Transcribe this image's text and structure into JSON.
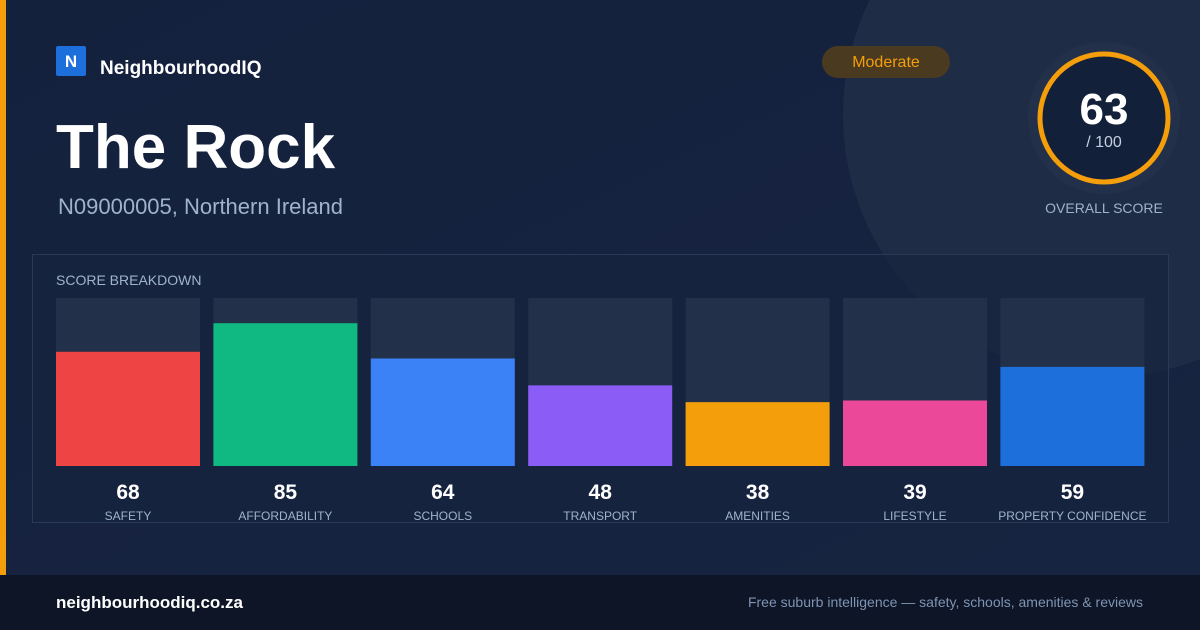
{
  "brand": {
    "logo": "N",
    "name": "NeighbourhoodIQ"
  },
  "header": {
    "title": "The Rock",
    "subtitle": "N09000005, Northern Ireland"
  },
  "badge": "Moderate",
  "score": {
    "value": 63,
    "out_of": {
      "value": 100,
      "label": "/ 100"
    },
    "caption": "OVERALL SCORE"
  },
  "breakdown": {
    "type": "bar",
    "title": "SCORE BREAKDOWN",
    "categories": [
      "SAFETY",
      "AFFORDABILITY",
      "SCHOOLS",
      "TRANSPORT",
      "AMENITIES",
      "LIFESTYLE",
      "PROPERTY CONFIDENCE"
    ],
    "values": [
      68,
      85,
      64,
      48,
      38,
      39,
      59
    ],
    "colors": [
      "#ef4444",
      "#10b981",
      "#3b82f6",
      "#8b5cf6",
      "#f59e0b",
      "#ec4899",
      "#1d6fdc"
    ]
  },
  "footer": {
    "site": "neighbourhoodiq.co.za",
    "tagline": "Free suburb intelligence — safety, schools, amenities & reviews"
  }
}
